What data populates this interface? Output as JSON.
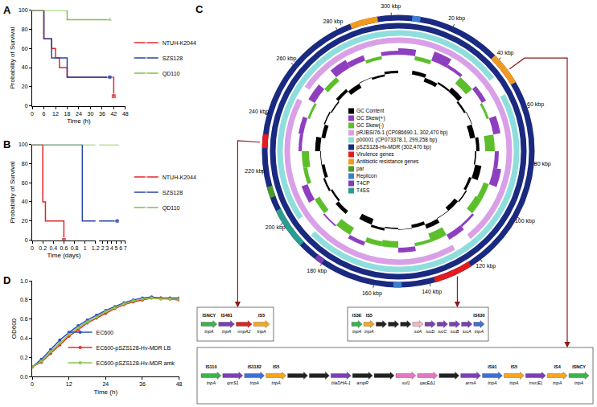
{
  "chart_data": [
    {
      "panel": "A",
      "type": "step",
      "x_title": "Time (h)",
      "y_title": "Probability of Survival",
      "xlim": [
        0,
        48
      ],
      "xticks": [
        0,
        6,
        12,
        18,
        24,
        30,
        36,
        42,
        48
      ],
      "ylim": [
        0,
        100
      ],
      "yticks": [
        0,
        20,
        40,
        60,
        80,
        100
      ],
      "legend": "right",
      "series": [
        {
          "name": "NTUH-K2044",
          "color": "#e3262b",
          "marker": "square",
          "x": [
            0,
            6,
            10,
            12,
            14,
            18,
            42
          ],
          "values": [
            100,
            70,
            60,
            50,
            40,
            30,
            10
          ]
        },
        {
          "name": "SZS128",
          "color": "#2743a6",
          "marker": "circle",
          "x": [
            0,
            6,
            10,
            18,
            40
          ],
          "values": [
            100,
            70,
            50,
            30,
            30
          ]
        },
        {
          "name": "QD110",
          "color": "#7cc242",
          "marker": "triangle",
          "x": [
            0,
            18,
            40
          ],
          "values": [
            100,
            90,
            90
          ]
        }
      ]
    },
    {
      "panel": "B",
      "type": "step",
      "x_title": "Time (days)",
      "y_title": "Probability of Survival",
      "xlim": [
        0,
        1.2
      ],
      "xticks": [
        0,
        0.2,
        0.4,
        0.6,
        0.8,
        1,
        1.2
      ],
      "x2lim": [
        1.2,
        7
      ],
      "x2ticks": [
        2,
        3,
        4,
        5,
        6,
        7
      ],
      "ylim": [
        0,
        100
      ],
      "yticks": [
        0,
        20,
        40,
        60,
        80,
        100
      ],
      "legend": "right",
      "series": [
        {
          "name": "NTUH-K2044",
          "color": "#e3262b",
          "marker": "square",
          "x": [
            0,
            0.2,
            0.25,
            0.6
          ],
          "values": [
            100,
            40,
            20,
            0
          ]
        },
        {
          "name": "SZS128",
          "color": "#2743a6",
          "marker": "circle",
          "x": [
            0,
            0.95,
            5.2
          ],
          "values": [
            100,
            20,
            20
          ]
        },
        {
          "name": "QD110",
          "color": "#7cc242",
          "marker": "triangle",
          "x": [
            0,
            5.2
          ],
          "values": [
            100,
            100
          ]
        }
      ]
    },
    {
      "panel": "D",
      "type": "line",
      "x_title": "Time (h)",
      "y_title": "OD600",
      "xlim": [
        0,
        48
      ],
      "xticks": [
        0,
        12,
        24,
        36,
        48
      ],
      "ylim": [
        0,
        1
      ],
      "yticks": [
        {
          "value": 0,
          "label": "0.0"
        },
        0.2,
        0.4,
        0.6,
        0.8,
        {
          "value": 1,
          "label": "1.0"
        }
      ],
      "legend": "bottom right",
      "series": [
        {
          "name": "EC600",
          "color": "#2f4fbf",
          "marker": "circle",
          "x": [
            0,
            3,
            6,
            9,
            12,
            15,
            18,
            21,
            24,
            27,
            30,
            33,
            36,
            39,
            42,
            45,
            48
          ],
          "values": [
            0.1,
            0.18,
            0.28,
            0.38,
            0.46,
            0.53,
            0.59,
            0.64,
            0.69,
            0.73,
            0.77,
            0.8,
            0.82,
            0.83,
            0.82,
            0.82,
            0.82
          ]
        },
        {
          "name": "EC600-pSZS128-Hv-MDR LB",
          "color": "#e0302a",
          "marker": "circle",
          "x": [
            0,
            3,
            6,
            9,
            12,
            15,
            18,
            21,
            24,
            27,
            30,
            33,
            36,
            39,
            42,
            45,
            48
          ],
          "values": [
            0.1,
            0.15,
            0.24,
            0.33,
            0.42,
            0.49,
            0.56,
            0.61,
            0.66,
            0.71,
            0.75,
            0.78,
            0.8,
            0.82,
            0.82,
            0.81,
            0.8
          ]
        },
        {
          "name": "EC600-pSZS128-Hv-MDR amk",
          "color": "#8bc34a",
          "marker": "circle",
          "x": [
            0,
            3,
            6,
            9,
            12,
            15,
            18,
            21,
            24,
            27,
            30,
            33,
            36,
            39,
            42,
            45,
            48
          ],
          "values": [
            0.1,
            0.16,
            0.26,
            0.35,
            0.44,
            0.51,
            0.57,
            0.62,
            0.68,
            0.72,
            0.76,
            0.79,
            0.81,
            0.82,
            0.81,
            0.81,
            0.81
          ]
        }
      ]
    }
  ],
  "map": {
    "panel": "C",
    "length_kbp": 302.47,
    "ticks_kbp": [
      {
        "value": 20,
        "label": "20 kbp"
      },
      {
        "value": 40,
        "label": "40 kbp"
      },
      {
        "value": 60,
        "label": "60 kbp"
      },
      {
        "value": 80,
        "label": "80 kbp"
      },
      {
        "value": 100,
        "label": "100 kbp"
      },
      {
        "value": 120,
        "label": "120 kbp"
      },
      {
        "value": 140,
        "label": "140 kbp"
      },
      {
        "value": 160,
        "label": "160 kbp"
      },
      {
        "value": 180,
        "label": "180 kbp"
      },
      {
        "value": 200,
        "label": "200 kbp"
      },
      {
        "value": 220,
        "label": "220 kbp"
      },
      {
        "value": 240,
        "label": "240 kbp"
      },
      {
        "value": 260,
        "label": "260 kbp"
      },
      {
        "value": 280,
        "label": "280 kbp"
      },
      {
        "value": 300,
        "label": "300 kbp"
      }
    ],
    "gc_legend": [
      {
        "label": "GC Content",
        "color": "#000000"
      },
      {
        "label": "GC Skew(+)",
        "color": "#8e3fbf"
      },
      {
        "label": "GC Skew(-)",
        "color": "#5cbf2a"
      }
    ],
    "gc_content": [
      52,
      58,
      46,
      55,
      60,
      49,
      53,
      44,
      57,
      50,
      62,
      48,
      54,
      45,
      51,
      59,
      47,
      53,
      50,
      56,
      43,
      52,
      58,
      49,
      55,
      47,
      51,
      60,
      46,
      54,
      50,
      57,
      45,
      53,
      49,
      56
    ],
    "gc_skew": [
      0.08,
      -0.05,
      0.12,
      0.04,
      -0.1,
      0.06,
      -0.03,
      0.09,
      -0.12,
      0.05,
      0.1,
      -0.07,
      -0.09,
      0.03,
      0.07,
      -0.11,
      -0.04,
      0.06,
      -0.08,
      -0.06,
      0.05,
      -0.1,
      0.02,
      -0.07,
      0.08,
      -0.05,
      -0.09,
      0.04,
      0.06,
      -0.03,
      0.09,
      -0.06,
      0.11,
      0.07,
      -0.04,
      0.05
    ],
    "rings": [
      {
        "label": "pRJBSI76-1 (CP086690.1, 302,470 bp)",
        "color": "#d9a0e8",
        "gaps_kbp": [
          [
            118,
            126
          ],
          [
            250,
            256
          ]
        ]
      },
      {
        "label": "p00001 (CP073378.1, 299,258 bp)",
        "color": "#8fdede",
        "gaps_kbp": [
          [
            44,
            52
          ],
          [
            190,
            198
          ]
        ]
      },
      {
        "label": "pSZS128-Hv-MDR (302,470 bp)",
        "color": "#1a2a80",
        "gaps_kbp": []
      }
    ],
    "categories": [
      {
        "label": "Virulence genes",
        "color": "#e41a1c"
      },
      {
        "label": "Antibiotic resistance genes",
        "color": "#f29a1f"
      },
      {
        "label": "par",
        "color": "#4c9a2a"
      },
      {
        "label": "Replicon",
        "color": "#3b7fd1"
      },
      {
        "label": "T4CP",
        "color": "#7b3fb5"
      },
      {
        "label": "T4SS",
        "color": "#2a9d8f"
      }
    ],
    "features": [
      {
        "category": "Virulence genes",
        "start": 124,
        "end": 138
      },
      {
        "category": "Virulence genes",
        "start": 228,
        "end": 233
      },
      {
        "category": "Antibiotic resistance genes",
        "start": 38,
        "end": 50
      },
      {
        "category": "Antibiotic resistance genes",
        "start": 285,
        "end": 295
      },
      {
        "category": "par",
        "start": 210,
        "end": 214
      },
      {
        "category": "Replicon",
        "start": 5,
        "end": 8
      },
      {
        "category": "Replicon",
        "start": 150,
        "end": 153
      },
      {
        "category": "T4CP",
        "start": 180,
        "end": 183
      },
      {
        "category": "T4SS",
        "start": 190,
        "end": 205
      }
    ],
    "boxes": [
      {
        "at_kbp": 230,
        "genes": [
          {
            "label": "tnpA",
            "is": "ISNCY",
            "color": "#3cb44b"
          },
          {
            "label": "tnpA",
            "is": "IS481",
            "color": "#7b3fb5"
          },
          {
            "label": "rmpA2",
            "color": "#d62728"
          },
          {
            "label": "tnpA",
            "is": "IS5",
            "color": "#f5a623"
          }
        ]
      },
      {
        "at_kbp": 130,
        "genes": [
          {
            "label": "tnpA",
            "is": "IS3E",
            "color": "#3cb44b"
          },
          {
            "label": "tnpA",
            "is": "IS5",
            "color": "#f5a623"
          },
          {
            "color": "#222222"
          },
          {
            "color": "#222222"
          },
          {
            "color": "#222222"
          },
          {
            "label": "iutA",
            "color": "#f4b6c2"
          },
          {
            "label": "iucD",
            "color": "#7b3fb5"
          },
          {
            "label": "iucC",
            "color": "#7b3fb5"
          },
          {
            "label": "iucB",
            "color": "#7b3fb5"
          },
          {
            "label": "iucA",
            "color": "#7b3fb5"
          },
          {
            "label": "tnpA",
            "is": "IS630",
            "color": "#3f6fd1"
          }
        ]
      },
      {
        "at_kbp": 45,
        "genes": [
          {
            "label": "tnpA",
            "is": "IS110",
            "color": "#3cb44b"
          },
          {
            "label": "qnrS1",
            "color": "#7b3fb5"
          },
          {
            "label": "tnpA",
            "is": "IS1182",
            "color": "#3f6fd1"
          },
          {
            "label": "tnpA",
            "is": "IS5",
            "color": "#f5a623"
          },
          {
            "color": "#222222"
          },
          {
            "color": "#222222"
          },
          {
            "label": "blaDHA-1",
            "color": "#7b3fb5"
          },
          {
            "label": "ampR",
            "color": "#222222"
          },
          {
            "color": "#222222"
          },
          {
            "label": "sul1",
            "color": "#e377c2"
          },
          {
            "label": "qacEΔ1",
            "color": "#e377c2"
          },
          {
            "color": "#222222"
          },
          {
            "label": "armA",
            "color": "#7b3fb5"
          },
          {
            "label": "tnpA",
            "is": "IS91",
            "color": "#3f6fd1"
          },
          {
            "label": "tnpA",
            "is": "IS5",
            "color": "#f5a623"
          },
          {
            "label": "msr(E)",
            "color": "#7b3fb5"
          },
          {
            "label": "tnpA",
            "is": "IS4",
            "color": "#f5a623"
          },
          {
            "label": "tnpA",
            "is": "ISNCY",
            "color": "#3cb44b"
          }
        ]
      }
    ]
  }
}
